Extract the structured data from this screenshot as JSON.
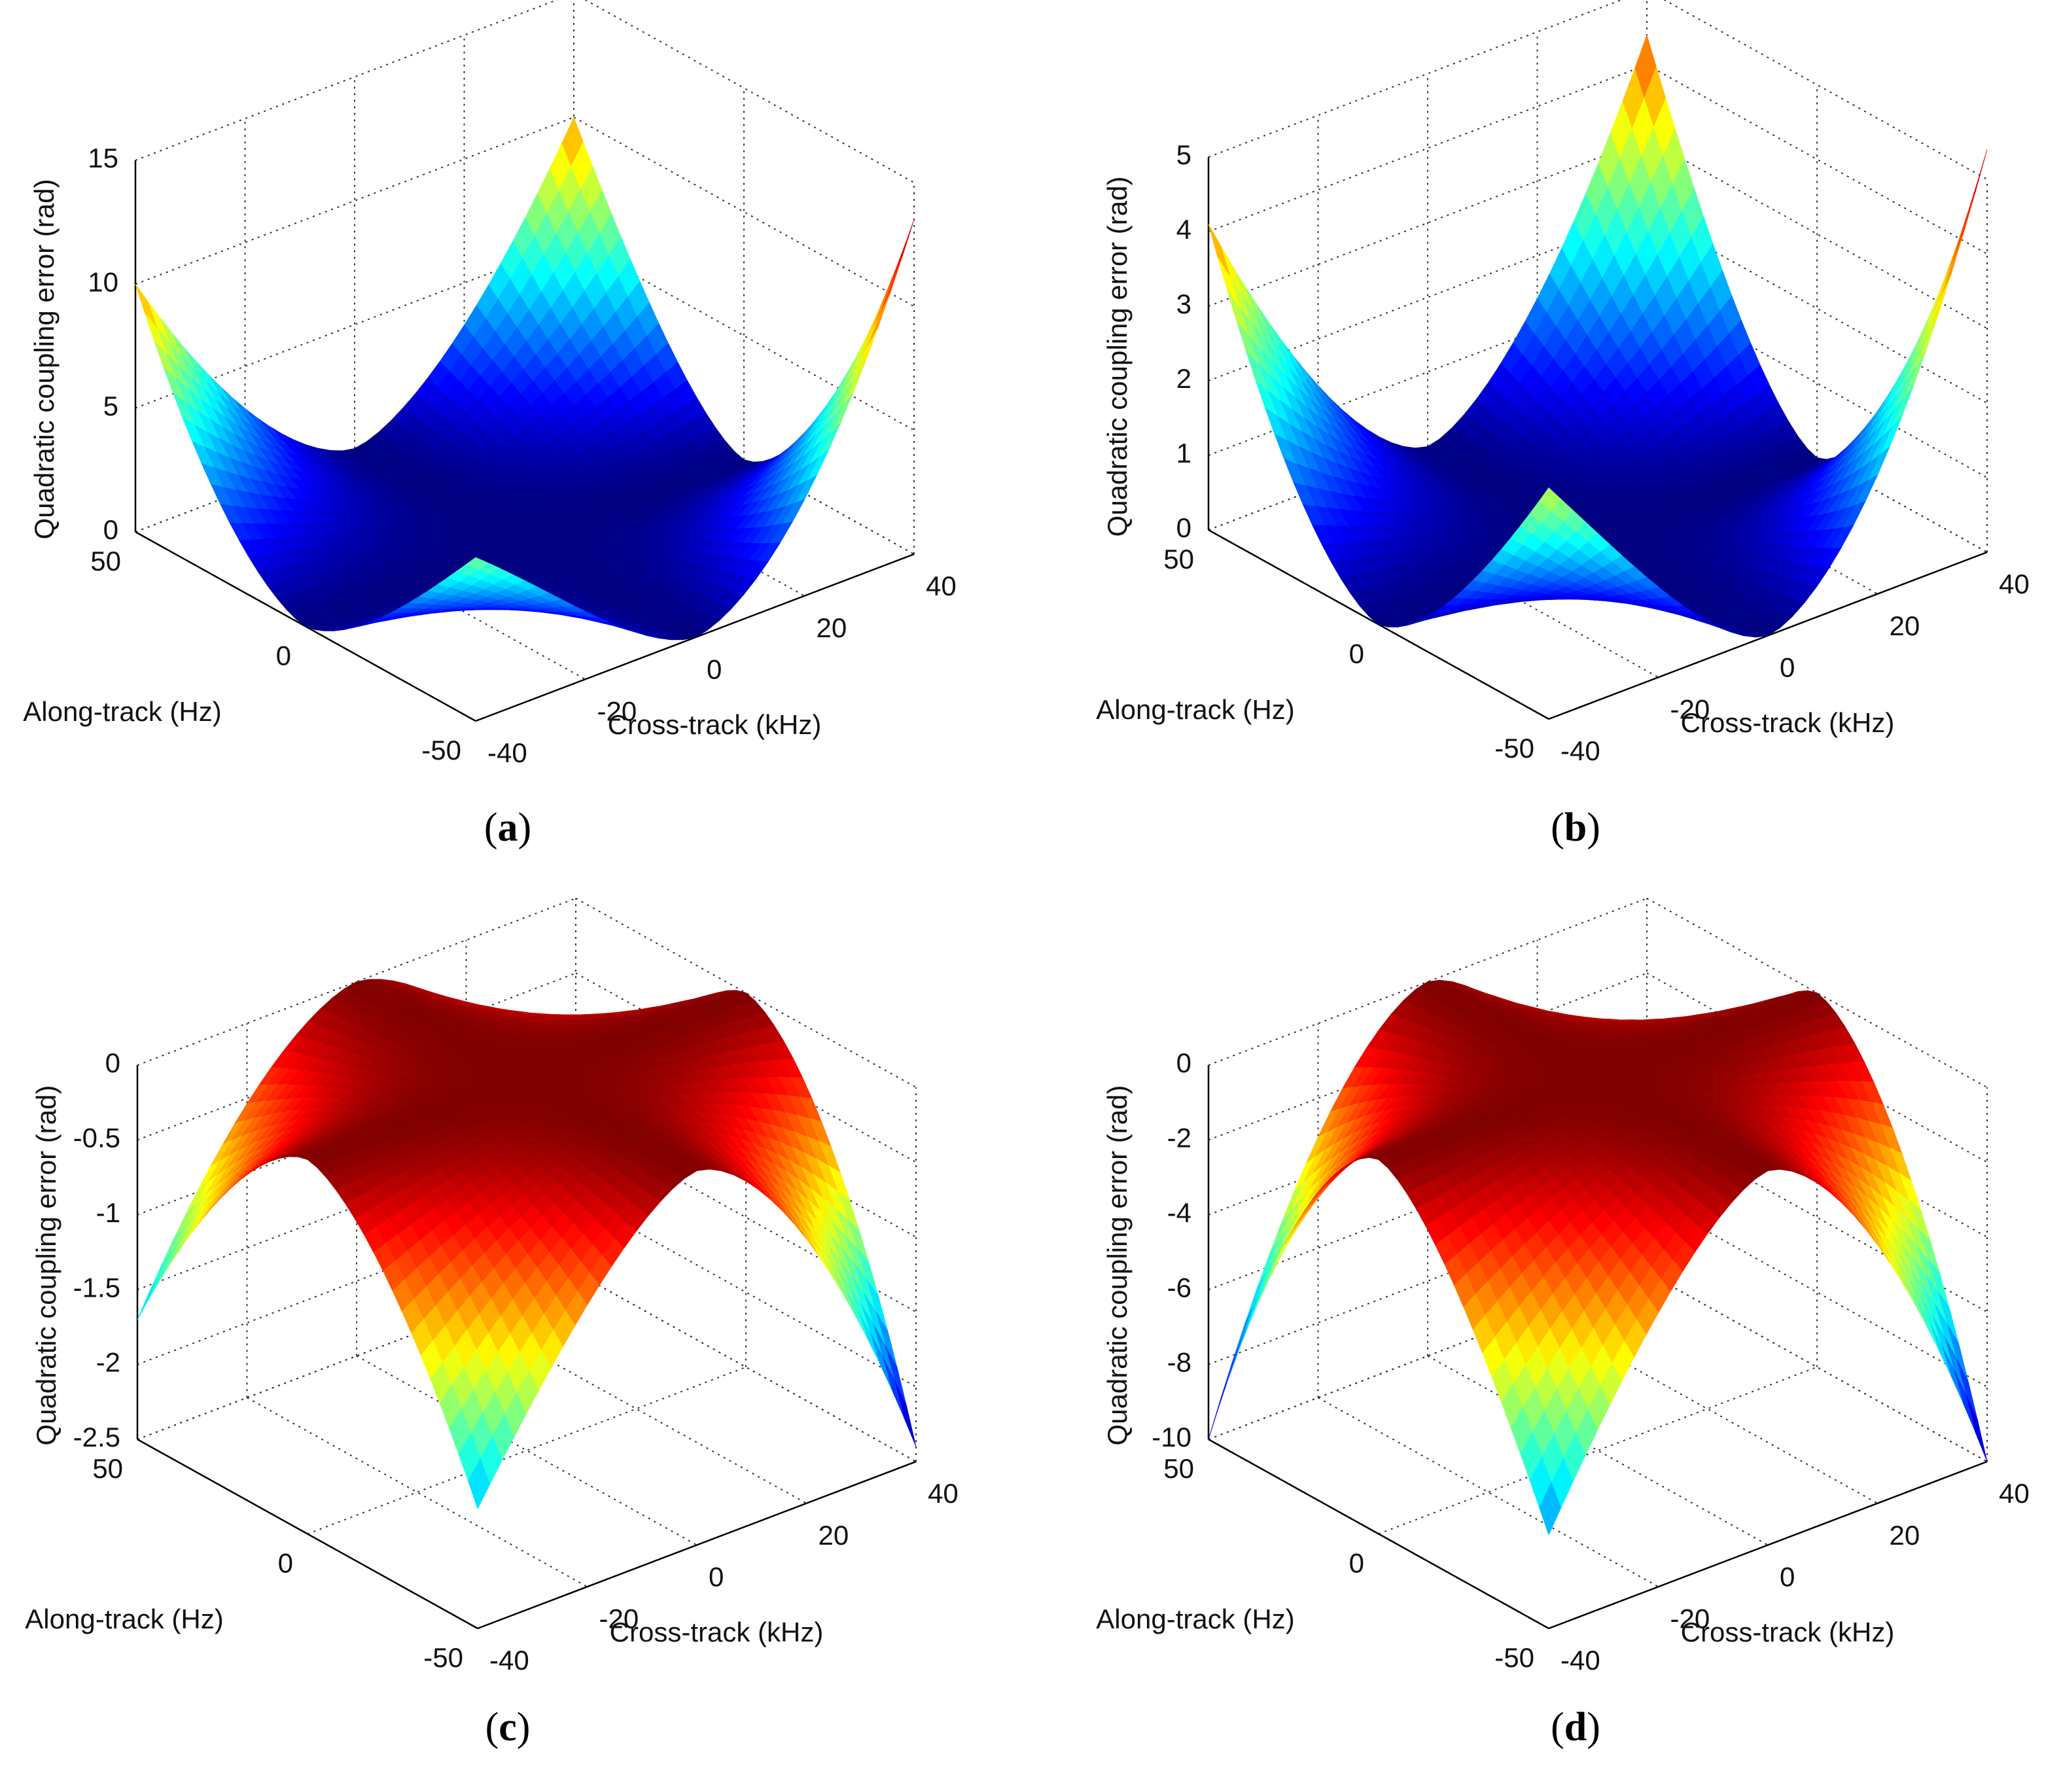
{
  "figure": {
    "panels": [
      {
        "letter": "a"
      },
      {
        "letter": "b"
      },
      {
        "letter": "c"
      },
      {
        "letter": "d"
      }
    ]
  },
  "chart_data": [
    {
      "type": "surface",
      "panel": "a",
      "caption": "(a)",
      "zlabel": "Quadratic coupling error   (rad)",
      "xlabel": "Along-track (Hz)",
      "ylabel": "Cross-track (kHz)",
      "x_ticks": [
        "50",
        "0",
        "-50"
      ],
      "y_ticks": [
        "-40",
        "-20",
        "0",
        "20",
        "40"
      ],
      "z_ticks": [
        "0",
        "5",
        "10",
        "15"
      ],
      "xlim": [
        -50,
        50
      ],
      "ylim": [
        -40,
        40
      ],
      "zlim": [
        0,
        15
      ],
      "colormap": "jet",
      "clim": [
        0,
        13.5
      ],
      "corner_values": {
        "x50_y-40": 10.0,
        "x-50_y-40": 6.6,
        "x-50_y40": 13.5,
        "x50_y40": 10.0
      },
      "min_value": 0,
      "shape": "saddle-like bowl rising to four corner peaks"
    },
    {
      "type": "surface",
      "panel": "b",
      "caption": "(b)",
      "zlabel": "Quadratic coupling error   (rad)",
      "xlabel": "Along-track (Hz)",
      "ylabel": "Cross-track (kHz)",
      "x_ticks": [
        "50",
        "0",
        "-50"
      ],
      "y_ticks": [
        "-40",
        "-20",
        "0",
        "20",
        "40"
      ],
      "z_ticks": [
        "0",
        "1",
        "2",
        "3",
        "4",
        "5"
      ],
      "xlim": [
        -50,
        50
      ],
      "ylim": [
        -40,
        40
      ],
      "zlim": [
        0,
        5
      ],
      "colormap": "jet",
      "clim": [
        0,
        5.4
      ],
      "corner_values": {
        "x50_y-40": 4.1,
        "x-50_y-40": 3.1,
        "x-50_y40": 5.4,
        "x50_y40": 4.4
      },
      "min_value": 0,
      "shape": "saddle-like bowl rising to four corner peaks"
    },
    {
      "type": "surface",
      "panel": "c",
      "caption": "(c)",
      "zlabel": "Quadratic coupling error   (rad)",
      "xlabel": "Along-track (Hz)",
      "ylabel": "Cross-track (kHz)",
      "x_ticks": [
        "50",
        "0",
        "-50"
      ],
      "y_ticks": [
        "-40",
        "-20",
        "0",
        "20",
        "40"
      ],
      "z_ticks": [
        "0",
        "-0.5",
        "-1",
        "-1.5",
        "-2",
        "-2.5"
      ],
      "xlim": [
        -50,
        50
      ],
      "ylim": [
        -40,
        40
      ],
      "zlim": [
        -2.5,
        0
      ],
      "colormap": "jet",
      "clim": [
        -2.4,
        0
      ],
      "corner_values": {
        "x50_y-40": -1.7,
        "x-50_y-40": -1.7,
        "x-50_y40": -2.4,
        "x50_y40": -1.4
      },
      "max_value": 0,
      "shape": "inverted dome falling to four corner troughs"
    },
    {
      "type": "surface",
      "panel": "d",
      "caption": "(d)",
      "zlabel": "Quadratic coupling error   (rad)",
      "xlabel": "Along-track (Hz)",
      "ylabel": "Cross-track (kHz)",
      "x_ticks": [
        "50",
        "0",
        "-50"
      ],
      "y_ticks": [
        "-40",
        "-20",
        "0",
        "20",
        "40"
      ],
      "z_ticks": [
        "0",
        "-2",
        "-4",
        "-6",
        "-8",
        "-10"
      ],
      "xlim": [
        -50,
        50
      ],
      "ylim": [
        -40,
        40
      ],
      "zlim": [
        -10,
        0
      ],
      "colormap": "jet",
      "clim": [
        -10,
        0
      ],
      "corner_values": {
        "x50_y-40": -10.0,
        "x-50_y-40": -7.5,
        "x-50_y40": -10.0,
        "x50_y40": -6.8
      },
      "max_value": 0,
      "shape": "inverted dome falling to four corner troughs"
    }
  ]
}
